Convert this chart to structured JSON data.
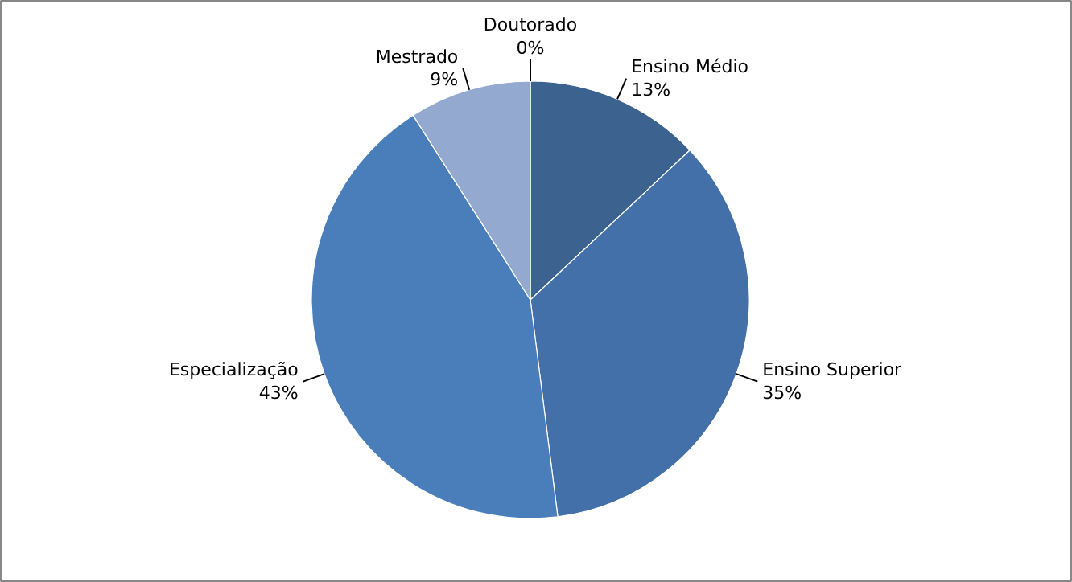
{
  "chart_data": {
    "type": "pie",
    "categories": [
      "Ensino Médio",
      "Ensino Superior",
      "Especialização",
      "Mestrado",
      "Doutorado"
    ],
    "values": [
      13,
      35,
      43,
      9,
      0
    ],
    "value_labels": [
      "13%",
      "35%",
      "43%",
      "9%",
      "0%"
    ],
    "colors": [
      "#3c6290",
      "#4370a8",
      "#4a7ebb",
      "#93a9d0",
      "#b9c9e3"
    ]
  }
}
